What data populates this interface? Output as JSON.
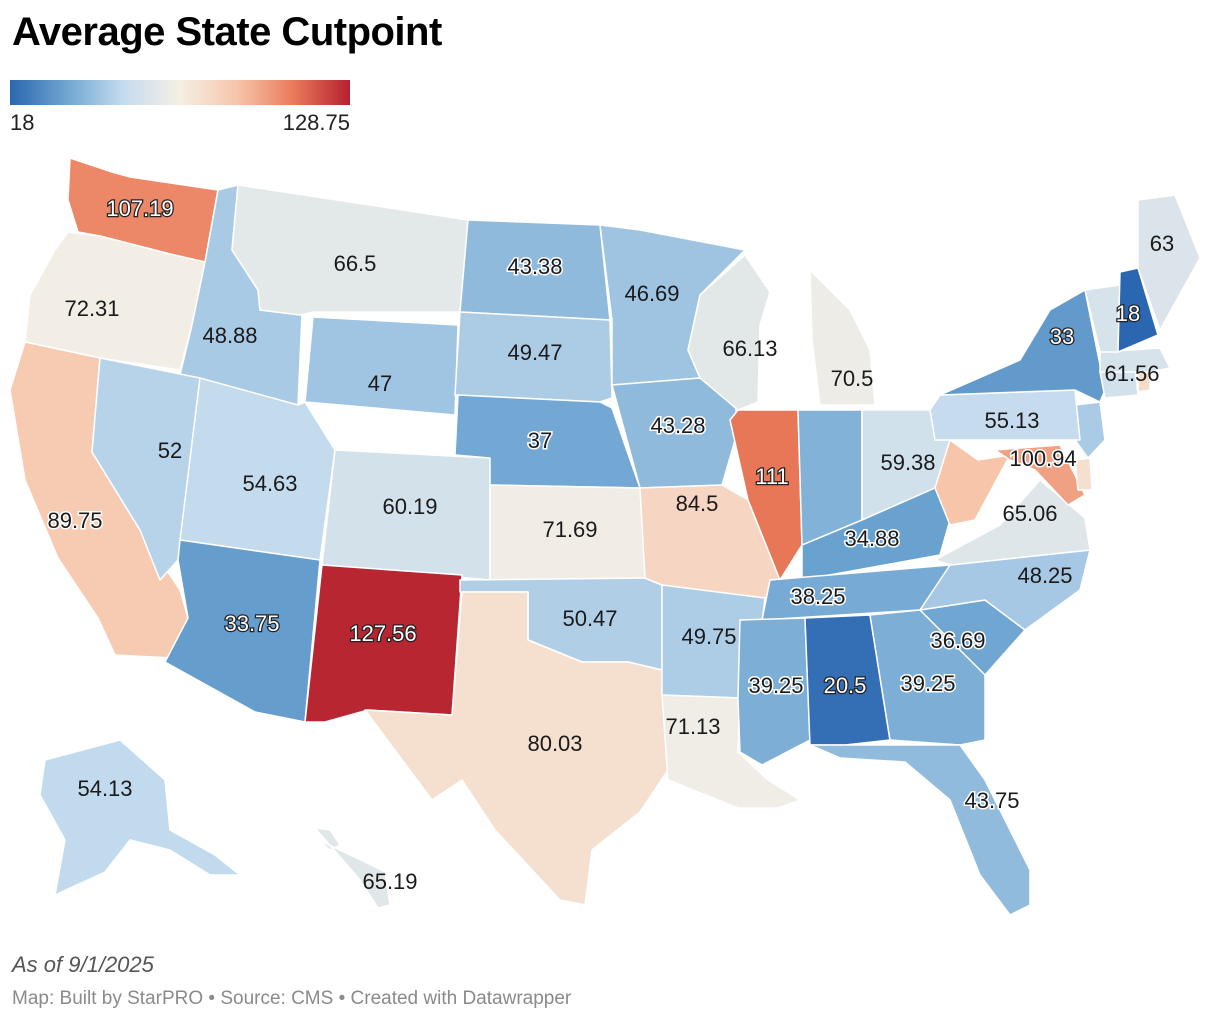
{
  "title": "Average State Cutpoint",
  "legend": {
    "min_label": "18",
    "max_label": "128.75",
    "colors": [
      "#2b66b0",
      "#6fa6d2",
      "#c5dcee",
      "#f5efe4",
      "#f6c6ab",
      "#ea7a5a",
      "#b5202f"
    ]
  },
  "footer": {
    "as_of": "As of 9/1/2025",
    "source": "Map: Built by StarPRO • Source: CMS • Created with Datawrapper"
  },
  "chart_data": {
    "type": "choropleth",
    "value_range": [
      18,
      128.75
    ],
    "states": [
      {
        "id": "WA",
        "value": 107.19,
        "label": "107.19"
      },
      {
        "id": "OR",
        "value": 72.31,
        "label": "72.31"
      },
      {
        "id": "CA",
        "value": 89.75,
        "label": "89.75"
      },
      {
        "id": "ID",
        "value": 48.88,
        "label": "48.88"
      },
      {
        "id": "NV",
        "value": 52,
        "label": "52"
      },
      {
        "id": "MT",
        "value": 66.5,
        "label": "66.5"
      },
      {
        "id": "WY",
        "value": 47,
        "label": "47"
      },
      {
        "id": "UT",
        "value": 54.63,
        "label": "54.63"
      },
      {
        "id": "AZ",
        "value": 33.75,
        "label": "33.75"
      },
      {
        "id": "CO",
        "value": 60.19,
        "label": "60.19"
      },
      {
        "id": "NM",
        "value": 127.56,
        "label": "127.56"
      },
      {
        "id": "ND",
        "value": 43.38,
        "label": "43.38"
      },
      {
        "id": "SD",
        "value": 49.47,
        "label": "49.47"
      },
      {
        "id": "NE",
        "value": 37,
        "label": "37"
      },
      {
        "id": "KS",
        "value": 71.69,
        "label": "71.69"
      },
      {
        "id": "OK",
        "value": 50.47,
        "label": "50.47"
      },
      {
        "id": "TX",
        "value": 80.03,
        "label": "80.03"
      },
      {
        "id": "MN",
        "value": 46.69,
        "label": "46.69"
      },
      {
        "id": "IA",
        "value": 43.28,
        "label": "43.28"
      },
      {
        "id": "MO",
        "value": 84.5,
        "label": "84.5"
      },
      {
        "id": "AR",
        "value": 49.75,
        "label": "49.75"
      },
      {
        "id": "LA",
        "value": 71.13,
        "label": "71.13"
      },
      {
        "id": "WI",
        "value": 66.13,
        "label": "66.13"
      },
      {
        "id": "IL",
        "value": 111,
        "label": "111"
      },
      {
        "id": "MI",
        "value": 70.5,
        "label": "70.5"
      },
      {
        "id": "IN",
        "value": 40.5,
        "label": ""
      },
      {
        "id": "OH",
        "value": 59.38,
        "label": "59.38"
      },
      {
        "id": "KY",
        "value": 34.88,
        "label": "34.88"
      },
      {
        "id": "TN",
        "value": 38.25,
        "label": "38.25"
      },
      {
        "id": "MS",
        "value": 39.25,
        "label": "39.25"
      },
      {
        "id": "AL",
        "value": 20.5,
        "label": "20.5"
      },
      {
        "id": "GA",
        "value": 39.25,
        "label": "39.25"
      },
      {
        "id": "FL",
        "value": 43.75,
        "label": "43.75"
      },
      {
        "id": "SC",
        "value": 36.69,
        "label": "36.69"
      },
      {
        "id": "NC",
        "value": 48.25,
        "label": "48.25"
      },
      {
        "id": "VA",
        "value": 65.06,
        "label": "65.06"
      },
      {
        "id": "WV",
        "value": 92,
        "label": ""
      },
      {
        "id": "MD",
        "value": 100.94,
        "label": "100.94"
      },
      {
        "id": "DE",
        "value": 80,
        "label": ""
      },
      {
        "id": "NJ",
        "value": 49,
        "label": ""
      },
      {
        "id": "PA",
        "value": 55.13,
        "label": "55.13"
      },
      {
        "id": "NY",
        "value": 33,
        "label": "33"
      },
      {
        "id": "CT",
        "value": 60,
        "label": ""
      },
      {
        "id": "RI",
        "value": 82,
        "label": ""
      },
      {
        "id": "MA",
        "value": 61.56,
        "label": "61.56"
      },
      {
        "id": "VT",
        "value": 62,
        "label": ""
      },
      {
        "id": "NH",
        "value": 18,
        "label": "18"
      },
      {
        "id": "ME",
        "value": 63,
        "label": "63"
      },
      {
        "id": "AK",
        "value": 54.13,
        "label": "54.13"
      },
      {
        "id": "HI",
        "value": 65.19,
        "label": "65.19"
      }
    ]
  }
}
